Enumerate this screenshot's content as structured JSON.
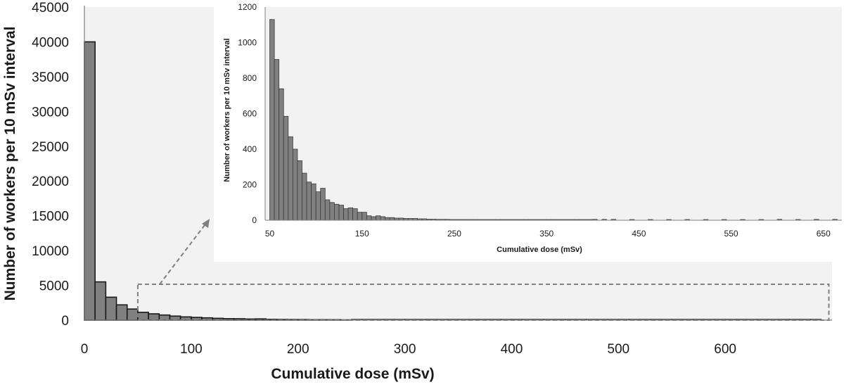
{
  "chart_data": [
    {
      "type": "bar",
      "ylabel": "Number of workers per 10 mSv interval",
      "xlabel": "Cumulative dose (mSv)",
      "ylim": [
        0,
        45000
      ],
      "xlim": [
        0,
        700
      ],
      "y_ticks": [
        "0",
        "5000",
        "10000",
        "15000",
        "20000",
        "25000",
        "30000",
        "35000",
        "40000",
        "45000"
      ],
      "x_ticks": [
        "0",
        "100",
        "200",
        "300",
        "400",
        "500",
        "600"
      ],
      "bin_width": 10,
      "bins_start": [
        0,
        10,
        20,
        30,
        40,
        50,
        60,
        70,
        80,
        90,
        100,
        110,
        120,
        130,
        140,
        150,
        160,
        170,
        180,
        190,
        200,
        210,
        220,
        230,
        240
      ],
      "values": [
        40000,
        5500,
        3300,
        2200,
        1600,
        1130,
        910,
        740,
        585,
        470,
        400,
        335,
        265,
        215,
        205,
        160,
        180,
        115,
        100,
        90,
        85,
        65,
        70,
        65,
        45
      ],
      "grid": false
    },
    {
      "type": "bar",
      "ylabel": "Number of workers per 10 mSv interval",
      "xlabel": "Cumulative dose (mSv)",
      "ylim": [
        0,
        1200
      ],
      "xlim": [
        45,
        670
      ],
      "y_ticks": [
        "0",
        "200",
        "400",
        "600",
        "800",
        "1000",
        "1200"
      ],
      "x_ticks": [
        "50",
        "150",
        "250",
        "350",
        "450",
        "550",
        "650"
      ],
      "bin_width": 5,
      "bins_start": [
        50,
        55,
        60,
        65,
        70,
        75,
        80,
        85,
        90,
        95,
        100,
        105,
        110,
        115,
        120,
        125,
        130,
        135,
        140,
        145,
        150,
        155,
        160,
        165,
        170,
        175,
        180,
        185,
        190,
        195,
        200,
        205,
        210,
        215,
        220,
        225,
        230,
        235,
        240,
        245,
        250,
        255,
        260,
        265,
        270,
        275,
        280,
        285,
        290,
        295,
        300,
        305,
        310,
        315,
        320,
        325,
        330,
        335,
        340,
        345,
        350,
        355,
        360,
        365,
        370,
        375,
        380,
        385,
        390,
        395,
        400,
        410,
        420,
        440,
        460,
        480,
        500,
        520,
        540,
        560,
        580,
        600,
        620,
        640,
        660
      ],
      "values": [
        1130,
        905,
        740,
        585,
        470,
        400,
        335,
        265,
        215,
        205,
        160,
        180,
        115,
        100,
        90,
        85,
        65,
        70,
        65,
        45,
        45,
        25,
        20,
        25,
        20,
        15,
        15,
        12,
        12,
        10,
        10,
        10,
        8,
        8,
        6,
        6,
        5,
        5,
        5,
        4,
        4,
        4,
        4,
        3,
        3,
        3,
        3,
        3,
        2,
        2,
        2,
        2,
        2,
        2,
        2,
        2,
        2,
        2,
        2,
        2,
        2,
        2,
        2,
        2,
        2,
        2,
        2,
        2,
        2,
        2,
        5,
        5,
        5,
        3,
        3,
        3,
        3,
        3,
        3,
        3,
        3,
        5,
        3,
        5,
        5
      ],
      "grid": false
    }
  ]
}
